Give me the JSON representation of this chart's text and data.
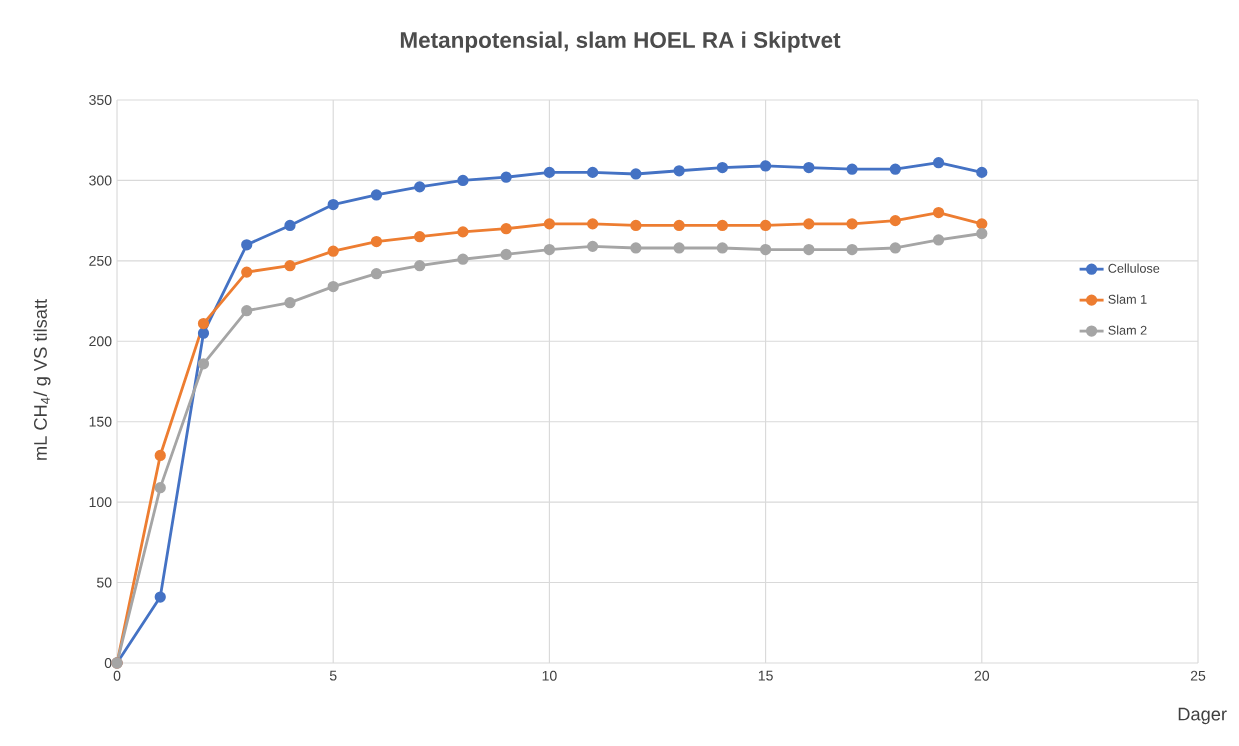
{
  "chart_data": {
    "type": "line",
    "title": "Metanpotensial, slam HOEL RA i Skiptvet",
    "xlabel": "Dager",
    "ylabel": "mL CH$_{4}$/ g VS tilsatt",
    "x": [
      0,
      1,
      2,
      3,
      4,
      5,
      6,
      7,
      8,
      9,
      10,
      11,
      12,
      13,
      14,
      15,
      16,
      17,
      18,
      19,
      20
    ],
    "series": [
      {
        "name": "Cellulose",
        "color": "#4472c4",
        "values": [
          0,
          41,
          205,
          260,
          272,
          285,
          291,
          296,
          300,
          302,
          305,
          305,
          304,
          306,
          308,
          309,
          308,
          307,
          307,
          311,
          305
        ]
      },
      {
        "name": "Slam 1",
        "color": "#ed7d31",
        "values": [
          0,
          129,
          211,
          243,
          247,
          256,
          262,
          265,
          268,
          270,
          273,
          273,
          272,
          272,
          272,
          272,
          273,
          273,
          275,
          280,
          273
        ]
      },
      {
        "name": "Slam 2",
        "color": "#a5a5a5",
        "values": [
          0,
          109,
          186,
          219,
          224,
          234,
          242,
          247,
          251,
          254,
          257,
          259,
          258,
          258,
          258,
          257,
          257,
          257,
          258,
          263,
          267
        ]
      }
    ],
    "xlim": [
      0,
      25
    ],
    "ylim": [
      0,
      350
    ],
    "xticks": [
      0,
      5,
      10,
      15,
      20,
      25
    ],
    "yticks": [
      0,
      50,
      100,
      150,
      200,
      250,
      300,
      350
    ],
    "grid": true,
    "legend": "right",
    "marker": "circle",
    "line_style": "solid"
  }
}
